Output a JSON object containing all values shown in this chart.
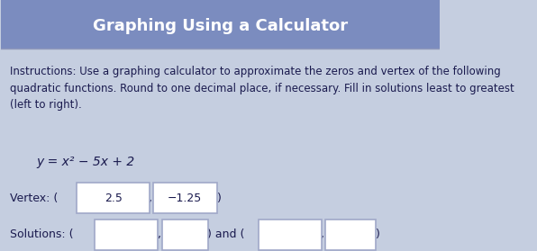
{
  "title": "Graphing Using a Calculator",
  "instructions": "Instructions: Use a graphing calculator to approximate the zeros and vertex of the following\nquadratic functions. Round to one decimal place, if necessary. Fill in solutions least to greatest\n(left to right).",
  "equation": "y = x² − 5x + 2",
  "vertex_x": "2.5",
  "vertex_y": "−1.25",
  "bg_color": "#c5cee0",
  "title_color": "#ffffff",
  "title_bg": "#7b8cbf",
  "text_color": "#1a1a4e",
  "box_color": "#ffffff",
  "box_border": "#a0a8c8",
  "sep_color": "#9099bb",
  "title_fontsize": 13,
  "instruction_fontsize": 8.5,
  "equation_fontsize": 10,
  "label_fontsize": 9
}
